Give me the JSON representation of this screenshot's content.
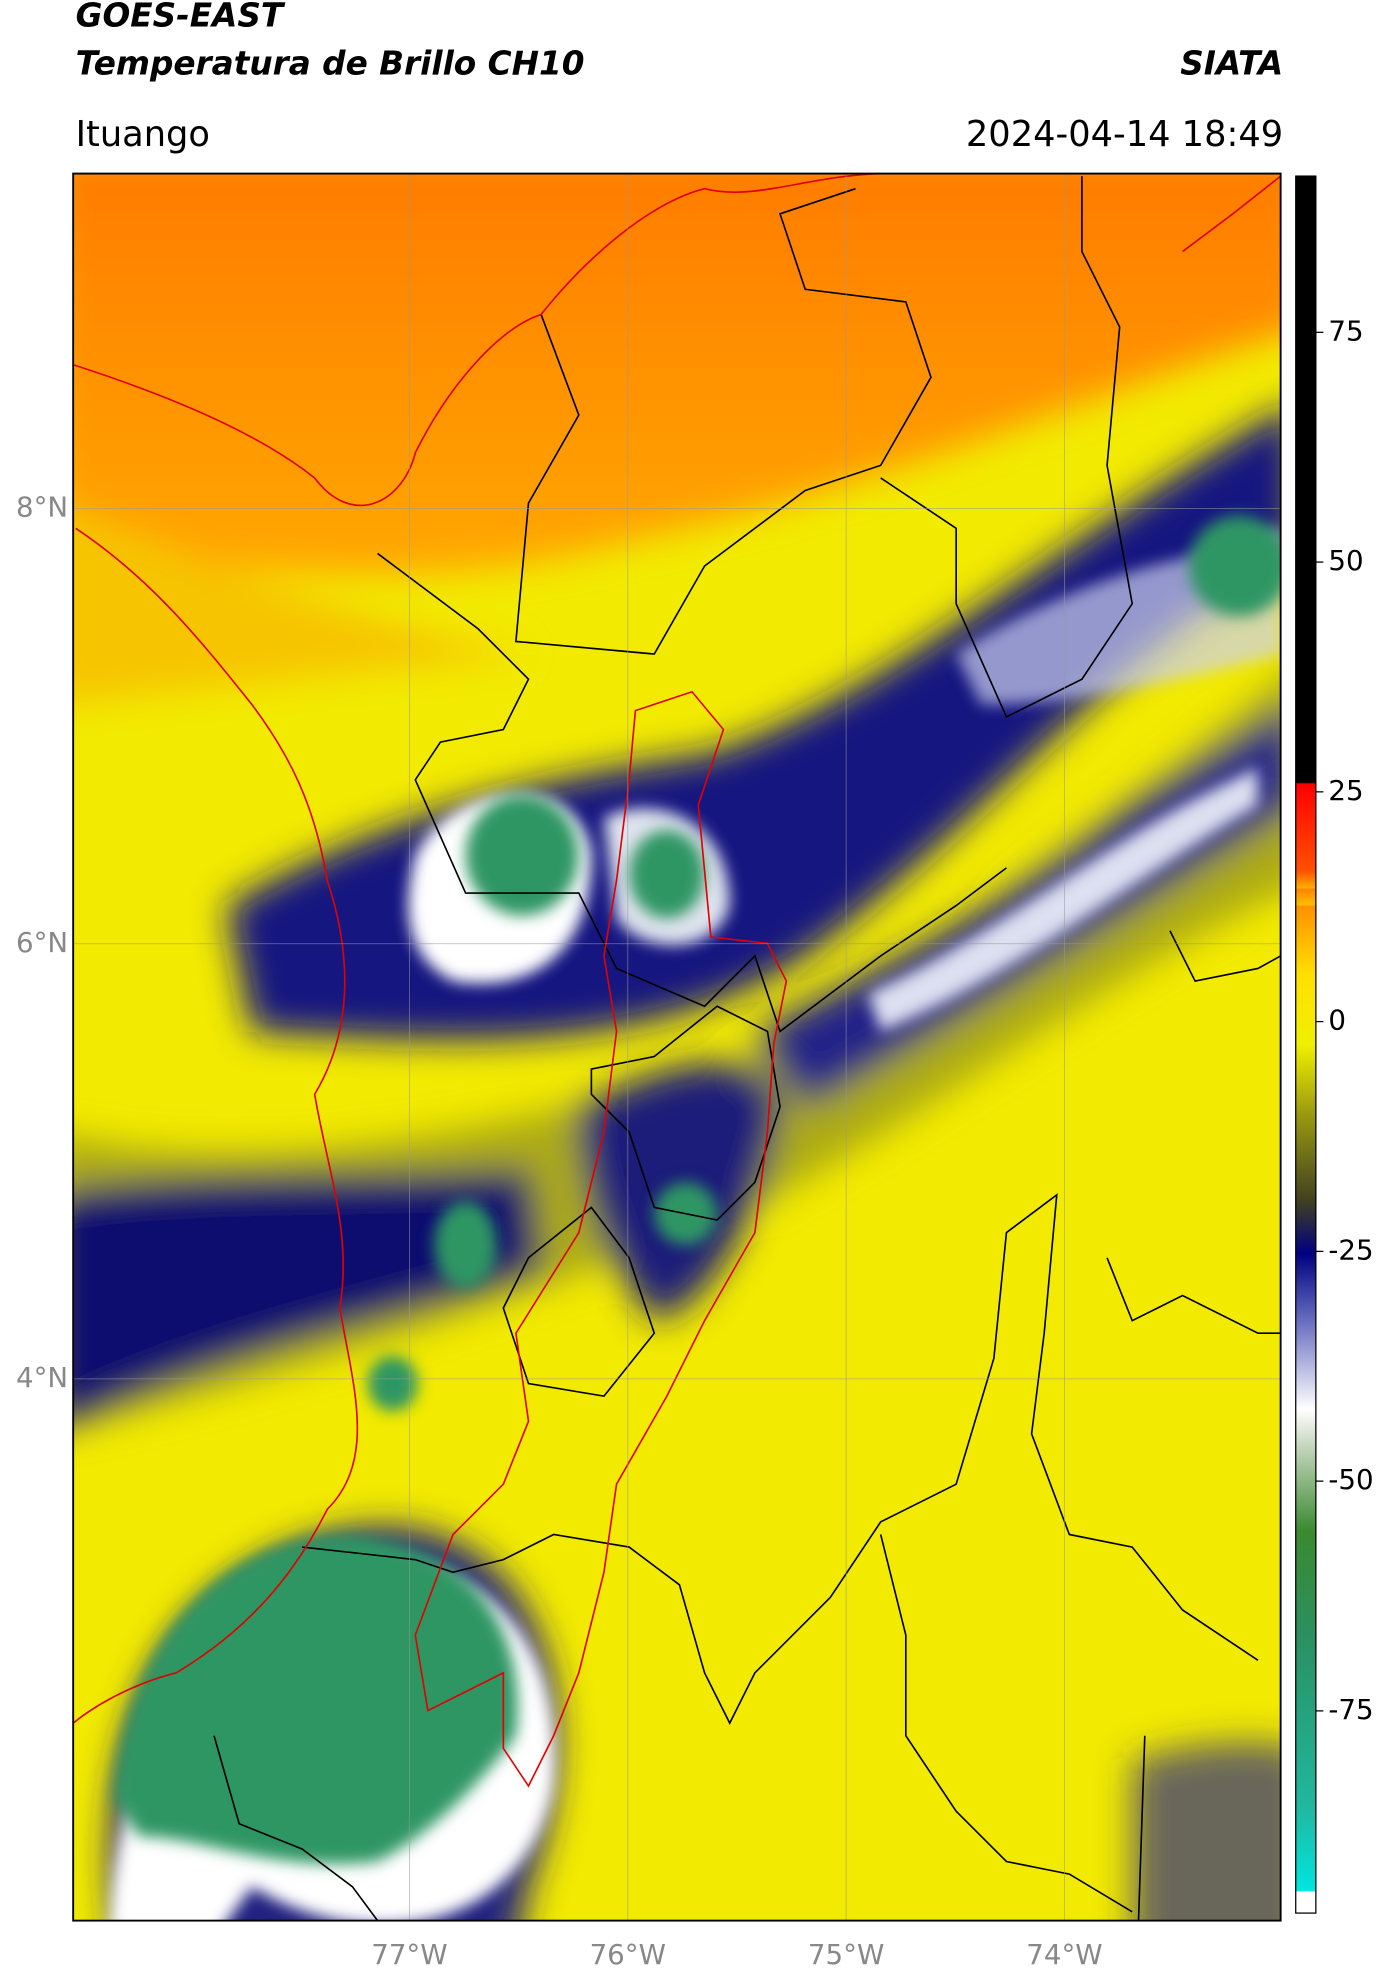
{
  "header": {
    "title": "GOES-EAST",
    "subtitle": "Temperatura de Brillo CH10",
    "org": "SIATA",
    "location": "Ituango",
    "datetime": "2024-04-14 18:49"
  },
  "map": {
    "xlim": [
      -78.54,
      -73.01
    ],
    "ylim": [
      1.51,
      9.54
    ],
    "xticks": [
      {
        "value": -77,
        "label": "77°W"
      },
      {
        "value": -76,
        "label": "76°W"
      },
      {
        "value": -75,
        "label": "75°W"
      },
      {
        "value": -74,
        "label": "74°W"
      }
    ],
    "yticks": [
      {
        "value": 8,
        "label": "8°N"
      },
      {
        "value": 6,
        "label": "6°N"
      },
      {
        "value": 4,
        "label": "4°N"
      }
    ],
    "grid": true
  },
  "colorbar": {
    "lim": [
      -97,
      92
    ],
    "ticks": [
      -75,
      -50,
      -25,
      0,
      25,
      50,
      75
    ]
  }
}
